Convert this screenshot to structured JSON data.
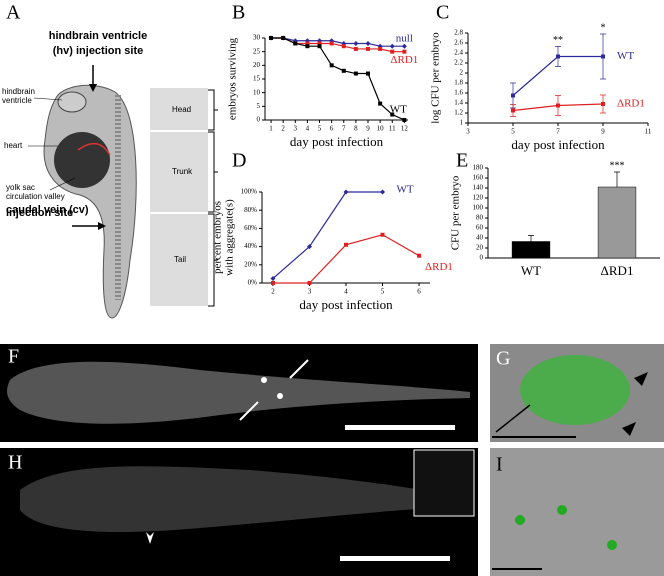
{
  "panel_labels": [
    "A",
    "B",
    "C",
    "D",
    "E",
    "F",
    "G",
    "H",
    "I"
  ],
  "diagram_a": {
    "hv_site": [
      "hindbrain ventricle",
      "(hv) injection site"
    ],
    "hindbrain_ventricle": [
      "hindbrain",
      "ventricle"
    ],
    "heart": "heart",
    "yolk_sac": [
      "yolk sac",
      "circulation valley"
    ],
    "cv_site": [
      "caudal vein (cv)",
      "injection site"
    ],
    "regions": [
      "Head",
      "Trunk",
      "Tail"
    ]
  },
  "chart_data": [
    {
      "type": "line",
      "xlabel": "day post infection",
      "ylabel": "embryos surviving",
      "x": [
        1,
        2,
        3,
        4,
        5,
        6,
        7,
        8,
        9,
        10,
        11,
        12
      ],
      "xlim": [
        0.5,
        12.3
      ],
      "xticks": [
        1,
        2,
        3,
        4,
        5,
        6,
        7,
        8,
        9,
        10,
        11,
        12
      ],
      "ylim": [
        0,
        30
      ],
      "yticks": [
        0,
        5,
        10,
        15,
        20,
        25,
        30
      ],
      "series": [
        {
          "name": "null",
          "color": "#2b2b9c",
          "marker": "diamond",
          "values": [
            30,
            30,
            29,
            29,
            29,
            29,
            28,
            28,
            28,
            27,
            27,
            27
          ]
        },
        {
          "name": "ΔRD1",
          "color": "#e02020",
          "marker": "square",
          "values": [
            30,
            30,
            28,
            28,
            28,
            28,
            27,
            26,
            26,
            26,
            25,
            25
          ]
        },
        {
          "name": "WT",
          "color": "#000000",
          "marker": "square",
          "values": [
            30,
            30,
            28,
            27,
            27,
            20,
            18,
            17,
            17,
            6,
            2,
            0
          ]
        }
      ]
    },
    {
      "type": "line",
      "xlabel": "day post infection",
      "ylabel": "log CFU per embryo",
      "x": [
        5,
        7,
        9
      ],
      "xlim": [
        3,
        11
      ],
      "xticks": [
        3,
        5,
        7,
        9,
        11
      ],
      "ylim": [
        1,
        2.8
      ],
      "yticks": [
        1,
        1.2,
        1.4,
        1.6,
        1.8,
        2,
        2.2,
        2.4,
        2.6,
        2.8
      ],
      "series": [
        {
          "name": "WT",
          "color": "#2b2b9c",
          "marker": "square",
          "values": [
            1.55,
            2.33,
            2.33
          ],
          "errors": [
            0.25,
            0.2,
            0.45
          ],
          "point_annotations": [
            null,
            "**",
            "*"
          ]
        },
        {
          "name": "ΔRD1",
          "color": "#e02020",
          "marker": "square",
          "values": [
            1.25,
            1.35,
            1.38
          ],
          "errors": [
            0.12,
            0.2,
            0.18
          ]
        }
      ]
    },
    {
      "type": "line",
      "xlabel": "day post infection",
      "ylabel": [
        "percent embryos",
        "with aggregate(s)"
      ],
      "x": [
        2,
        3,
        4,
        5,
        6
      ],
      "xlim": [
        1.7,
        6.3
      ],
      "xticks": [
        2,
        3,
        4,
        5,
        6
      ],
      "ylim": [
        0,
        100
      ],
      "yticks": [
        {
          "value": 0,
          "label": "0%"
        },
        {
          "value": 20,
          "label": "20%"
        },
        {
          "value": 40,
          "label": "40%"
        },
        {
          "value": 60,
          "label": "60%"
        },
        {
          "value": 80,
          "label": "80%"
        },
        {
          "value": 100,
          "label": "100%"
        }
      ],
      "series": [
        {
          "name": "WT",
          "color": "#2b2b9c",
          "marker": "diamond",
          "values": [
            5,
            40,
            100,
            100,
            null
          ]
        },
        {
          "name": "ΔRD1",
          "color": "#e02020",
          "marker": "square",
          "values": [
            0,
            0,
            42,
            53,
            30
          ]
        }
      ]
    },
    {
      "type": "bar",
      "ylabel": "CFU per embryo",
      "categories": [
        "WT",
        "ΔRD1"
      ],
      "values": [
        33,
        142
      ],
      "errors": [
        12,
        30
      ],
      "colors": [
        "#000000",
        "#999999"
      ],
      "value_annotations": [
        null,
        "***"
      ],
      "ylim": [
        0,
        180
      ],
      "yticks": [
        0,
        20,
        40,
        60,
        80,
        100,
        120,
        140,
        160,
        180
      ]
    }
  ]
}
